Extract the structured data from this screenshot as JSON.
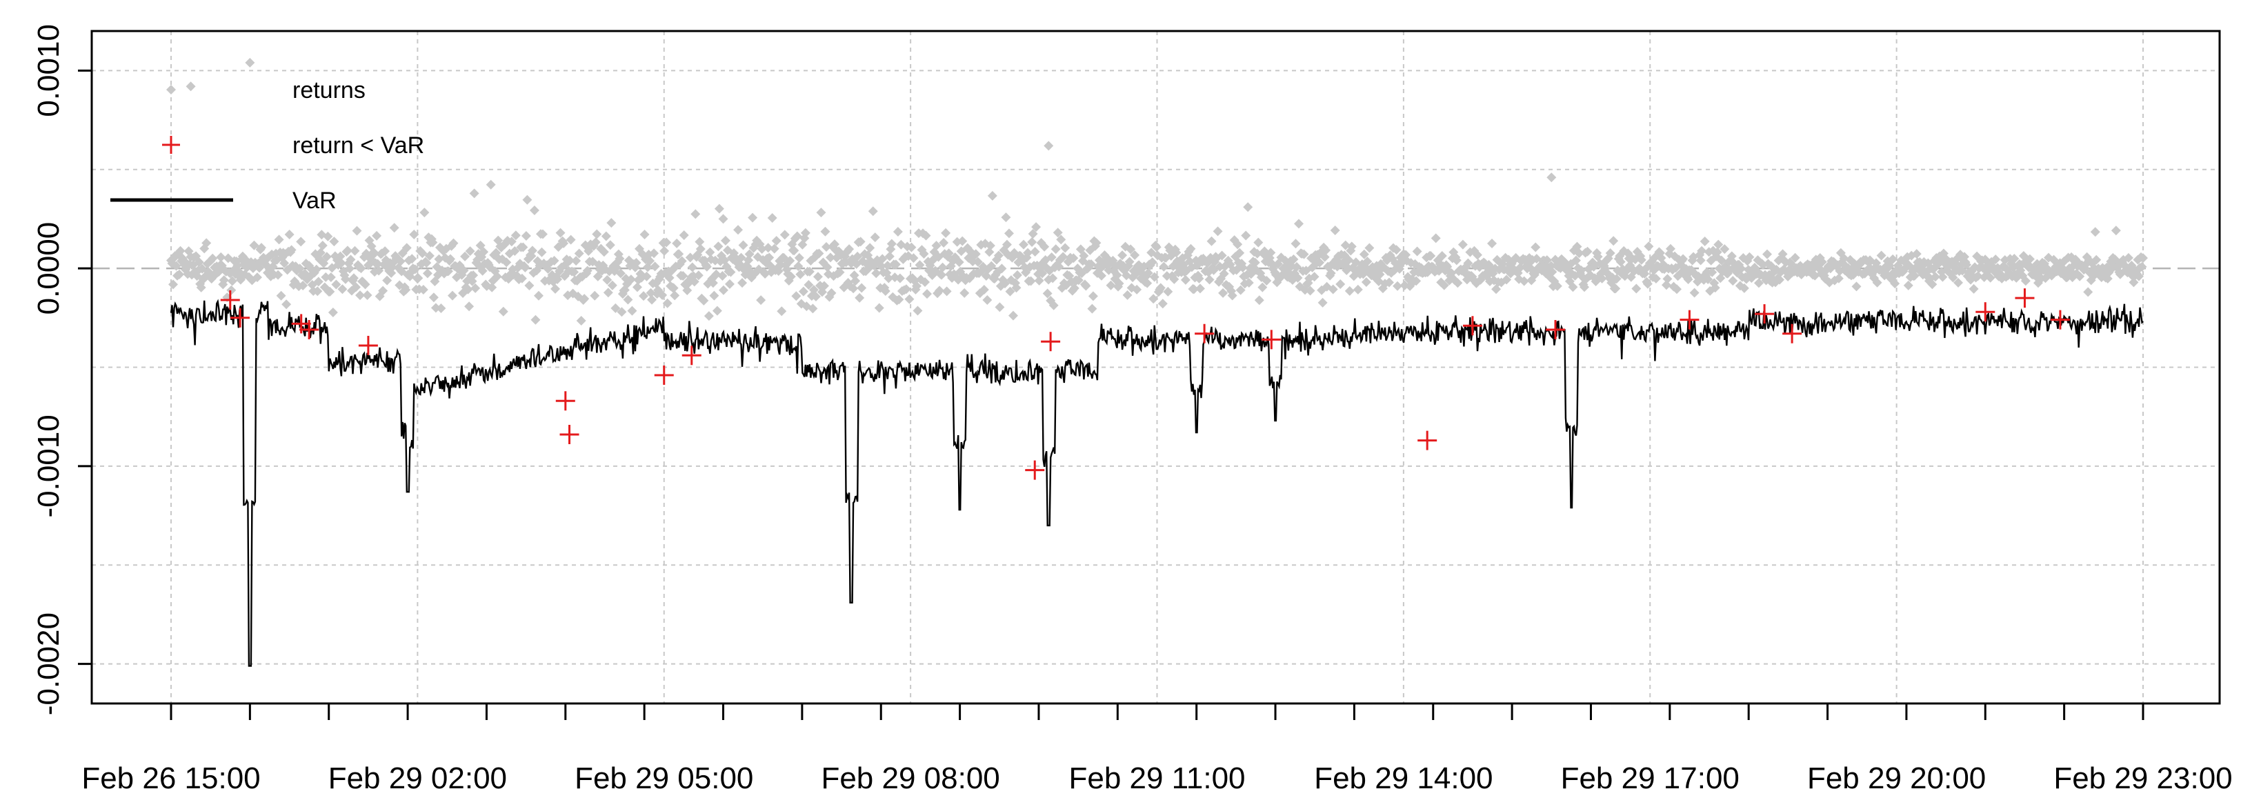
{
  "chart_data": {
    "type": "scatter",
    "title": "",
    "xlabel": "",
    "ylabel": "",
    "ylim": [
      -0.0022,
      0.0012
    ],
    "y_ticks": [
      0.001,
      0.0,
      -0.001,
      -0.002
    ],
    "y_tick_labels": [
      "0.0010",
      "0.0000",
      "-0.0010",
      "-0.0020"
    ],
    "x_tick_labels": [
      "Feb 26 15:00",
      "Feb 29 02:00",
      "Feb 29 05:00",
      "Feb 29 08:00",
      "Feb 29 11:00",
      "Feb 29 14:00",
      "Feb 29 17:00",
      "Feb 29 20:00",
      "Feb 29 23:00"
    ],
    "grid": true,
    "legend": {
      "placement": "top-left",
      "entries": [
        {
          "label": "returns",
          "marker": "diamond",
          "color": "#c8c8c8"
        },
        {
          "label": "return < VaR",
          "marker": "plus",
          "color": "#e41a1c"
        },
        {
          "label": "VaR",
          "marker": "line",
          "color": "#000000"
        }
      ]
    },
    "colors": {
      "returns": "#c8c8c8",
      "breaches": "#e41a1c",
      "var": "#000000",
      "grid": "#c8c8c8",
      "zero_line": "#b4b4b4"
    },
    "n_obs": 1900,
    "var_spikes": [
      {
        "t": 0.04,
        "y": -0.00201
      },
      {
        "t": 0.12,
        "y": -0.00113
      },
      {
        "t": 0.345,
        "y": -0.00169
      },
      {
        "t": 0.4,
        "y": -0.00122
      },
      {
        "t": 0.445,
        "y": -0.0013
      },
      {
        "t": 0.52,
        "y": -0.00083
      },
      {
        "t": 0.56,
        "y": -0.00077
      },
      {
        "t": 0.71,
        "y": -0.00121
      }
    ],
    "breaches": [
      {
        "t": 0.03,
        "y": -0.00016
      },
      {
        "t": 0.035,
        "y": -0.00025
      },
      {
        "t": 0.066,
        "y": -0.00028
      },
      {
        "t": 0.07,
        "y": -0.00031
      },
      {
        "t": 0.1,
        "y": -0.00039
      },
      {
        "t": 0.2,
        "y": -0.00067
      },
      {
        "t": 0.202,
        "y": -0.00084
      },
      {
        "t": 0.25,
        "y": -0.00054
      },
      {
        "t": 0.264,
        "y": -0.00044
      },
      {
        "t": 0.438,
        "y": -0.00102
      },
      {
        "t": 0.446,
        "y": -0.00037
      },
      {
        "t": 0.524,
        "y": -0.00033
      },
      {
        "t": 0.558,
        "y": -0.00036
      },
      {
        "t": 0.637,
        "y": -0.00087
      },
      {
        "t": 0.66,
        "y": -0.00029
      },
      {
        "t": 0.702,
        "y": -0.00031
      },
      {
        "t": 0.77,
        "y": -0.00026
      },
      {
        "t": 0.808,
        "y": -0.00023
      },
      {
        "t": 0.822,
        "y": -0.00033
      },
      {
        "t": 0.92,
        "y": -0.00022
      },
      {
        "t": 0.94,
        "y": -0.00015
      },
      {
        "t": 0.958,
        "y": -0.00026
      }
    ]
  }
}
